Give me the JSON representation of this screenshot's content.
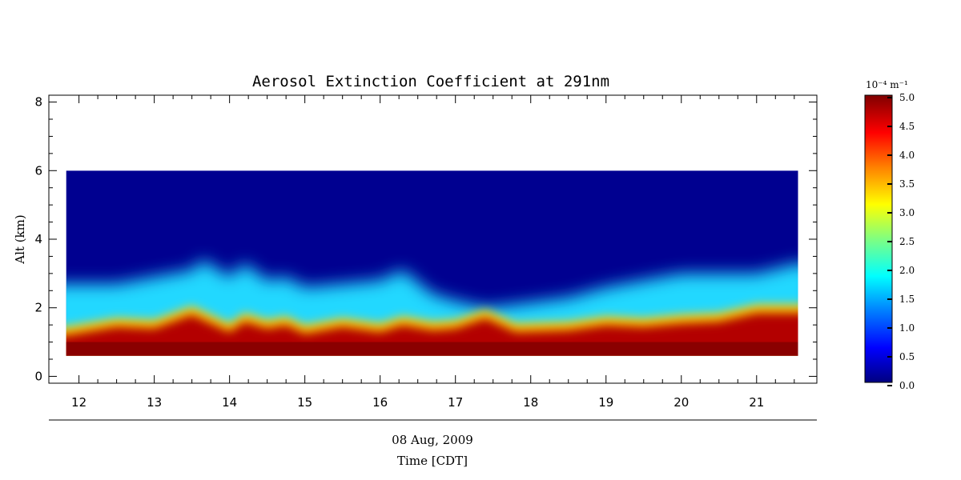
{
  "chart_data": {
    "type": "heatmap",
    "title": "Aerosol Extinction Coefficient at 291nm",
    "ylabel": "Alt (km)",
    "xlabel": "Time [CDT]",
    "date_label": "08 Aug, 2009",
    "xlim": [
      11.6,
      21.8
    ],
    "ylim": [
      -0.2,
      8.2
    ],
    "x_ticks": [
      "12",
      "13",
      "14",
      "15",
      "16",
      "17",
      "18",
      "19",
      "20",
      "21"
    ],
    "y_ticks": [
      "0",
      "2",
      "4",
      "6",
      "8"
    ],
    "data_time_range": [
      11.83,
      21.55
    ],
    "data_alt_range": [
      0.6,
      6.0
    ],
    "layer_profile": {
      "time": [
        11.83,
        12.5,
        13.0,
        13.5,
        13.65,
        14.0,
        14.2,
        14.5,
        14.75,
        15.0,
        15.5,
        16.0,
        16.3,
        16.7,
        17.0,
        17.4,
        17.8,
        18.5,
        19.0,
        19.5,
        20.0,
        20.5,
        21.0,
        21.55
      ],
      "red_top_km": [
        1.2,
        1.45,
        1.4,
        1.8,
        1.65,
        1.3,
        1.6,
        1.4,
        1.5,
        1.25,
        1.45,
        1.3,
        1.5,
        1.35,
        1.4,
        1.7,
        1.3,
        1.35,
        1.5,
        1.45,
        1.55,
        1.6,
        1.85,
        1.85
      ],
      "cyan_top_km": [
        2.7,
        2.7,
        2.9,
        3.1,
        3.4,
        2.9,
        3.3,
        2.8,
        2.9,
        2.6,
        2.7,
        2.8,
        3.1,
        2.4,
        2.2,
        2.0,
        2.1,
        2.3,
        2.6,
        2.8,
        3.0,
        3.0,
        3.0,
        3.3
      ]
    },
    "colorbar": {
      "unit_label": "10⁻⁴ m⁻¹",
      "range": [
        0.0,
        5.0
      ],
      "tick_labels": [
        "0.0",
        "0.5",
        "1.0",
        "1.5",
        "2.0",
        "2.5",
        "3.0",
        "3.5",
        "4.0",
        "4.5",
        "5.0"
      ],
      "colors": [
        "#000080",
        "#0000ff",
        "#0080ff",
        "#00ffff",
        "#80ff80",
        "#ffff00",
        "#ff8000",
        "#ff0000",
        "#800000"
      ]
    }
  }
}
